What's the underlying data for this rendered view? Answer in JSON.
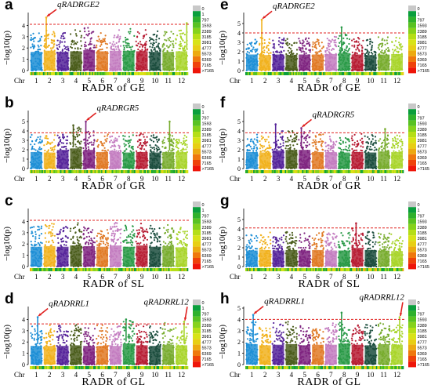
{
  "legend": {
    "labels": [
      "0",
      "1",
      "797",
      "1593",
      "2389",
      "3185",
      "3981",
      "4777",
      "5573",
      "6369",
      "7165",
      ">7165"
    ],
    "colors": [
      "#c8c8c8",
      "#0a9e3c",
      "#2fb12c",
      "#59c222",
      "#86d21c",
      "#b5de17",
      "#d8e317",
      "#e7cf14",
      "#ecaa10",
      "#ef780d",
      "#ef420a",
      "#ee1509"
    ]
  },
  "chr_prefix": "Chr",
  "ylabel": "−log10(p)",
  "chart_data": [
    {
      "id": "a",
      "type": "scatter",
      "letter": "a",
      "title": "RADR of  GE",
      "ylabel": "−log10(p)",
      "categories": [
        "1",
        "2",
        "3",
        "4",
        "5",
        "6",
        "7",
        "8",
        "9",
        "10",
        "11",
        "12"
      ],
      "series_colors": [
        "#1f8fd6",
        "#f1b21e",
        "#56249a",
        "#4b5d1c",
        "#7f2580",
        "#e07a26",
        "#c37cc0",
        "#2a9a48",
        "#b71d34",
        "#1c4e3e",
        "#78ac2e",
        "#a9d52c"
      ],
      "ylim": [
        0,
        5
      ],
      "yticks": [
        0,
        1,
        2,
        3,
        4
      ],
      "threshold": 4.1,
      "base_levels": [
        3.0,
        3.2,
        3.0,
        3.1,
        3.3,
        3.1,
        3.2,
        3.2,
        3.1,
        3.0,
        3.0,
        3.1
      ],
      "peaks": [
        {
          "chr": 2,
          "pos": 0.25,
          "y": 4.7
        },
        {
          "chr": 12,
          "pos": 0.9,
          "y": 4.2
        }
      ],
      "annotations": [
        {
          "text": "qRADRGE2",
          "chr": 2,
          "pos": 0.25,
          "y": 4.7
        }
      ]
    },
    {
      "id": "e",
      "type": "scatter",
      "letter": "e",
      "title": "RADR of  GE",
      "ylabel": "−log10(p)",
      "categories": [
        "1",
        "2",
        "3",
        "4",
        "5",
        "6",
        "7",
        "8",
        "9",
        "10",
        "11",
        "12"
      ],
      "series_colors": [
        "#1f8fd6",
        "#f1b21e",
        "#56249a",
        "#4b5d1c",
        "#7f2580",
        "#e07a26",
        "#c37cc0",
        "#2a9a48",
        "#b71d34",
        "#1c4e3e",
        "#78ac2e",
        "#a9d52c"
      ],
      "ylim": [
        0,
        6
      ],
      "yticks": [
        0,
        1,
        2,
        3,
        4,
        5
      ],
      "threshold": 4.0,
      "base_levels": [
        3.1,
        3.0,
        3.1,
        3.0,
        3.1,
        3.1,
        3.2,
        3.4,
        3.1,
        3.0,
        3.1,
        3.2
      ],
      "peaks": [
        {
          "chr": 2,
          "pos": 0.25,
          "y": 5.4
        },
        {
          "chr": 8,
          "pos": 0.3,
          "y": 4.6
        }
      ],
      "annotations": [
        {
          "text": "qRADRGE2",
          "chr": 2,
          "pos": 0.25,
          "y": 5.4
        }
      ]
    },
    {
      "id": "b",
      "type": "scatter",
      "letter": "b",
      "title": "RADR of  GR",
      "ylabel": "−log10(p)",
      "categories": [
        "1",
        "2",
        "3",
        "4",
        "5",
        "6",
        "7",
        "8",
        "9",
        "10",
        "11",
        "12"
      ],
      "series_colors": [
        "#1f8fd6",
        "#f1b21e",
        "#56249a",
        "#4b5d1c",
        "#7f2580",
        "#e07a26",
        "#c37cc0",
        "#2a9a48",
        "#b71d34",
        "#1c4e3e",
        "#78ac2e",
        "#a9d52c"
      ],
      "ylim": [
        0,
        6
      ],
      "yticks": [
        0,
        1,
        2,
        3,
        4,
        5
      ],
      "threshold": 3.8,
      "base_levels": [
        3.2,
        3.1,
        3.6,
        3.9,
        3.6,
        3.2,
        3.2,
        3.1,
        3.2,
        3.1,
        3.2,
        3.2
      ],
      "peaks": [
        {
          "chr": 5,
          "pos": 0.25,
          "y": 5.0
        },
        {
          "chr": 4,
          "pos": 0.3,
          "y": 4.6
        },
        {
          "chr": 11,
          "pos": 0.6,
          "y": 5.0
        }
      ],
      "annotations": [
        {
          "text": "qRADRGR5",
          "chr": 5,
          "pos": 0.25,
          "y": 5.0
        }
      ]
    },
    {
      "id": "f",
      "type": "scatter",
      "letter": "f",
      "title": "RADR of  GR",
      "ylabel": "−log10(p)",
      "categories": [
        "1",
        "2",
        "3",
        "4",
        "5",
        "6",
        "7",
        "8",
        "9",
        "10",
        "11",
        "12"
      ],
      "series_colors": [
        "#1f8fd6",
        "#f1b21e",
        "#56249a",
        "#4b5d1c",
        "#7f2580",
        "#e07a26",
        "#c37cc0",
        "#2a9a48",
        "#b71d34",
        "#1c4e3e",
        "#78ac2e",
        "#a9d52c"
      ],
      "ylim": [
        0,
        6
      ],
      "yticks": [
        0,
        1,
        2,
        3,
        4,
        5
      ],
      "threshold": 3.8,
      "base_levels": [
        3.2,
        3.1,
        3.5,
        3.6,
        3.6,
        3.2,
        3.2,
        3.1,
        3.2,
        3.1,
        3.3,
        3.2
      ],
      "peaks": [
        {
          "chr": 5,
          "pos": 0.25,
          "y": 4.3
        },
        {
          "chr": 3,
          "pos": 0.3,
          "y": 4.7
        },
        {
          "chr": 11,
          "pos": 0.6,
          "y": 4.2
        }
      ],
      "annotations": [
        {
          "text": "qRADRGR5",
          "chr": 5,
          "pos": 0.25,
          "y": 4.3
        }
      ]
    },
    {
      "id": "c",
      "type": "scatter",
      "letter": "c",
      "title": "RADR of  SL",
      "ylabel": "−log10(p)",
      "categories": [
        "1",
        "2",
        "3",
        "4",
        "5",
        "6",
        "7",
        "8",
        "9",
        "10",
        "11",
        "12"
      ],
      "series_colors": [
        "#1f8fd6",
        "#f1b21e",
        "#56249a",
        "#4b5d1c",
        "#7f2580",
        "#e07a26",
        "#c37cc0",
        "#2a9a48",
        "#b71d34",
        "#1c4e3e",
        "#78ac2e",
        "#a9d52c"
      ],
      "ylim": [
        0,
        5
      ],
      "yticks": [
        0,
        1,
        2,
        3,
        4
      ],
      "threshold": 4.1,
      "base_levels": [
        3.2,
        3.3,
        3.2,
        3.4,
        3.3,
        3.2,
        3.4,
        3.2,
        3.4,
        3.2,
        3.3,
        3.1
      ],
      "peaks": [],
      "annotations": []
    },
    {
      "id": "g",
      "type": "scatter",
      "letter": "g",
      "title": "RADR of  SL",
      "ylabel": "−log10(p)",
      "categories": [
        "1",
        "2",
        "3",
        "4",
        "5",
        "6",
        "7",
        "8",
        "9",
        "10",
        "11",
        "12"
      ],
      "series_colors": [
        "#1f8fd6",
        "#f1b21e",
        "#56249a",
        "#4b5d1c",
        "#7f2580",
        "#e07a26",
        "#c37cc0",
        "#2a9a48",
        "#b71d34",
        "#1c4e3e",
        "#78ac2e",
        "#a9d52c"
      ],
      "ylim": [
        0,
        6
      ],
      "yticks": [
        0,
        1,
        2,
        3,
        4,
        5
      ],
      "threshold": 4.1,
      "base_levels": [
        3.1,
        3.2,
        3.1,
        3.2,
        3.1,
        3.2,
        3.1,
        3.1,
        3.6,
        3.2,
        3.1,
        3.0
      ],
      "peaks": [
        {
          "chr": 9,
          "pos": 0.4,
          "y": 4.6
        }
      ],
      "annotations": []
    },
    {
      "id": "d",
      "type": "scatter",
      "letter": "d",
      "title": "RADR of  GL",
      "ylabel": "−log10(p)",
      "categories": [
        "1",
        "2",
        "3",
        "4",
        "5",
        "6",
        "7",
        "8",
        "9",
        "10",
        "11",
        "12"
      ],
      "series_colors": [
        "#1f8fd6",
        "#f1b21e",
        "#56249a",
        "#4b5d1c",
        "#7f2580",
        "#e07a26",
        "#c37cc0",
        "#2a9a48",
        "#b71d34",
        "#1c4e3e",
        "#78ac2e",
        "#a9d52c"
      ],
      "ylim": [
        0,
        5
      ],
      "yticks": [
        0,
        1,
        2,
        3,
        4
      ],
      "threshold": 3.6,
      "base_levels": [
        3.0,
        3.0,
        3.0,
        3.1,
        3.0,
        3.0,
        3.0,
        3.4,
        3.1,
        3.0,
        3.2,
        3.1
      ],
      "peaks": [
        {
          "chr": 1,
          "pos": 0.6,
          "y": 4.2
        },
        {
          "chr": 8,
          "pos": 0.3,
          "y": 4.0
        },
        {
          "chr": 12,
          "pos": 0.7,
          "y": 3.8
        }
      ],
      "annotations": [
        {
          "text": "qRADRRL1",
          "chr": 1,
          "pos": 0.6,
          "y": 4.2
        },
        {
          "text": "qRADRRL12",
          "chr": 12,
          "pos": 0.7,
          "y": 3.8
        }
      ]
    },
    {
      "id": "h",
      "type": "scatter",
      "letter": "h",
      "title": "RADR of  GL",
      "ylabel": "−log10(p)",
      "categories": [
        "1",
        "2",
        "3",
        "4",
        "5",
        "6",
        "7",
        "8",
        "9",
        "10",
        "11",
        "12"
      ],
      "series_colors": [
        "#1f8fd6",
        "#f1b21e",
        "#56249a",
        "#4b5d1c",
        "#7f2580",
        "#e07a26",
        "#c37cc0",
        "#2a9a48",
        "#b71d34",
        "#1c4e3e",
        "#78ac2e",
        "#a9d52c"
      ],
      "ylim": [
        0,
        5
      ],
      "yticks": [
        0,
        1,
        2,
        3,
        4,
        5
      ],
      "threshold": 4.0,
      "base_levels": [
        3.3,
        3.1,
        3.2,
        3.3,
        3.1,
        3.2,
        3.2,
        3.4,
        3.2,
        3.1,
        3.3,
        3.2
      ],
      "peaks": [
        {
          "chr": 1,
          "pos": 0.6,
          "y": 4.4
        },
        {
          "chr": 8,
          "pos": 0.3,
          "y": 4.6
        },
        {
          "chr": 12,
          "pos": 0.7,
          "y": 4.2
        }
      ],
      "annotations": [
        {
          "text": "qRADRRL1",
          "chr": 1,
          "pos": 0.6,
          "y": 4.4
        },
        {
          "text": "qRADRRL12",
          "chr": 12,
          "pos": 0.7,
          "y": 4.2
        }
      ]
    }
  ]
}
